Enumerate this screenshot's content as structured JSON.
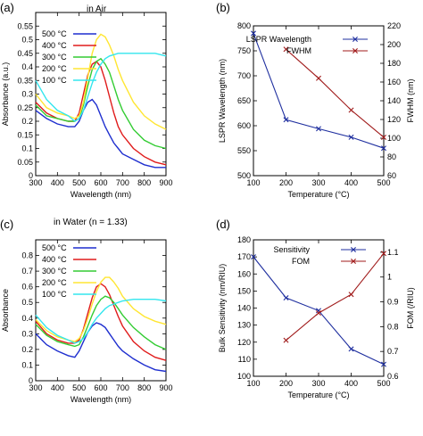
{
  "chart_data": [
    {
      "panel_label": "(a)",
      "type": "line",
      "title": "in Air",
      "xlabel": "Wavelength (nm)",
      "ylabel": "Absorbance (a.u.)",
      "xlim": [
        300,
        900
      ],
      "x_ticks": [
        300,
        400,
        500,
        600,
        700,
        800,
        900
      ],
      "ylim": [
        0,
        0.6
      ],
      "y_ticks": [
        "0",
        "0.05",
        "0.1",
        "0.15",
        "0.2",
        "0.25",
        "0.3",
        "0.35",
        "0.4",
        "0.45",
        "0.5",
        "0.55"
      ],
      "legend_position": "top-left",
      "x": [
        300,
        350,
        400,
        450,
        480,
        500,
        520,
        540,
        560,
        580,
        600,
        620,
        640,
        660,
        680,
        700,
        750,
        800,
        850,
        900
      ],
      "series": [
        {
          "name": "500 °C",
          "color": "#1f2fcf",
          "values": [
            0.24,
            0.21,
            0.19,
            0.18,
            0.18,
            0.2,
            0.24,
            0.27,
            0.28,
            0.26,
            0.22,
            0.18,
            0.15,
            0.12,
            0.1,
            0.08,
            0.06,
            0.04,
            0.03,
            0.03
          ]
        },
        {
          "name": "400 °C",
          "color": "#e01b1b",
          "values": [
            0.27,
            0.23,
            0.21,
            0.2,
            0.2,
            0.23,
            0.3,
            0.37,
            0.41,
            0.42,
            0.4,
            0.35,
            0.29,
            0.23,
            0.18,
            0.15,
            0.1,
            0.07,
            0.05,
            0.04
          ]
        },
        {
          "name": "300 °C",
          "color": "#33cc33",
          "values": [
            0.26,
            0.22,
            0.21,
            0.2,
            0.2,
            0.21,
            0.26,
            0.33,
            0.39,
            0.42,
            0.43,
            0.41,
            0.38,
            0.33,
            0.28,
            0.24,
            0.17,
            0.13,
            0.11,
            0.1
          ]
        },
        {
          "name": "200 °C",
          "color": "#ffe633",
          "values": [
            0.3,
            0.25,
            0.23,
            0.22,
            0.21,
            0.22,
            0.27,
            0.36,
            0.45,
            0.5,
            0.52,
            0.51,
            0.48,
            0.44,
            0.39,
            0.35,
            0.27,
            0.22,
            0.19,
            0.17
          ]
        },
        {
          "name": "100 °C",
          "color": "#33e6ee",
          "values": [
            0.35,
            0.28,
            0.24,
            0.22,
            0.2,
            0.21,
            0.24,
            0.29,
            0.34,
            0.38,
            0.41,
            0.43,
            0.44,
            0.445,
            0.45,
            0.45,
            0.45,
            0.45,
            0.45,
            0.44
          ]
        }
      ]
    },
    {
      "panel_label": "(b)",
      "type": "line",
      "xlabel": "Temperature (°C)",
      "ylabel": "LSPR Wavelength (nm)",
      "ylabel_right": "FWHM (nm)",
      "xlim": [
        100,
        500
      ],
      "x_ticks": [
        100,
        200,
        300,
        400,
        500
      ],
      "ylim": [
        500,
        800
      ],
      "y_ticks": [
        500,
        550,
        600,
        650,
        700,
        750,
        800
      ],
      "ylim_right": [
        60,
        220
      ],
      "y_ticks_right": [
        60,
        80,
        100,
        120,
        140,
        160,
        180,
        200,
        220
      ],
      "legend_position": "top-center",
      "series": [
        {
          "name": "LSPR Wavelength",
          "color": "#1f2f9f",
          "axis": "left",
          "x": [
            100,
            200,
            300,
            400,
            500
          ],
          "values": [
            785,
            612,
            594,
            577,
            555
          ]
        },
        {
          "name": "FWHM",
          "color": "#a01b1b",
          "axis": "right",
          "x": [
            200,
            300,
            400,
            500
          ],
          "values": [
            195,
            164,
            130,
            101
          ]
        }
      ]
    },
    {
      "panel_label": "(c)",
      "type": "line",
      "title": "in Water (n = 1.33)",
      "xlabel": "Wavelength (nm)",
      "ylabel": "Absorbance",
      "xlim": [
        300,
        900
      ],
      "x_ticks": [
        300,
        400,
        500,
        600,
        700,
        800,
        900
      ],
      "ylim": [
        0,
        0.9
      ],
      "y_ticks": [
        "0",
        "0.1",
        "0.2",
        "0.3",
        "0.4",
        "0.5",
        "0.6",
        "0.7",
        "0.8"
      ],
      "legend_position": "top-left",
      "x": [
        300,
        350,
        400,
        450,
        480,
        500,
        520,
        540,
        560,
        580,
        600,
        620,
        640,
        660,
        680,
        700,
        750,
        800,
        850,
        900
      ],
      "series": [
        {
          "name": "500 °C",
          "color": "#1f2fcf",
          "values": [
            0.3,
            0.23,
            0.19,
            0.16,
            0.15,
            0.19,
            0.25,
            0.31,
            0.35,
            0.37,
            0.36,
            0.34,
            0.3,
            0.26,
            0.22,
            0.19,
            0.14,
            0.1,
            0.07,
            0.06
          ]
        },
        {
          "name": "400 °C",
          "color": "#e01b1b",
          "values": [
            0.38,
            0.3,
            0.26,
            0.24,
            0.24,
            0.26,
            0.33,
            0.43,
            0.53,
            0.6,
            0.62,
            0.6,
            0.55,
            0.48,
            0.41,
            0.35,
            0.25,
            0.19,
            0.15,
            0.13
          ]
        },
        {
          "name": "300 °C",
          "color": "#33cc33",
          "values": [
            0.36,
            0.29,
            0.25,
            0.23,
            0.22,
            0.23,
            0.28,
            0.35,
            0.42,
            0.48,
            0.52,
            0.54,
            0.53,
            0.5,
            0.46,
            0.42,
            0.34,
            0.28,
            0.23,
            0.2
          ]
        },
        {
          "name": "200 °C",
          "color": "#ffe633",
          "values": [
            0.39,
            0.32,
            0.28,
            0.26,
            0.25,
            0.27,
            0.32,
            0.4,
            0.49,
            0.57,
            0.63,
            0.66,
            0.66,
            0.63,
            0.59,
            0.54,
            0.46,
            0.41,
            0.38,
            0.36
          ]
        },
        {
          "name": "100 °C",
          "color": "#33e6ee",
          "values": [
            0.42,
            0.34,
            0.29,
            0.26,
            0.24,
            0.25,
            0.27,
            0.31,
            0.36,
            0.4,
            0.43,
            0.46,
            0.48,
            0.49,
            0.5,
            0.51,
            0.52,
            0.52,
            0.52,
            0.51
          ]
        }
      ]
    },
    {
      "panel_label": "(d)",
      "type": "line",
      "xlabel": "Temperature (°C)",
      "ylabel": "Bulk Sensitivity (nm/RIU)",
      "ylabel_right": "FOM (/RIU)",
      "xlim": [
        100,
        500
      ],
      "x_ticks": [
        100,
        200,
        300,
        400,
        500
      ],
      "ylim": [
        100,
        180
      ],
      "y_ticks": [
        100,
        110,
        120,
        130,
        140,
        150,
        160,
        170,
        180
      ],
      "ylim_right": [
        0.6,
        1.15
      ],
      "y_ticks_right": [
        "0.6",
        "0.7",
        "0.8",
        "0.9",
        "1",
        "1.1"
      ],
      "legend_position": "top-center",
      "series": [
        {
          "name": "Sensitivity",
          "color": "#1f2f9f",
          "axis": "left",
          "x": [
            100,
            200,
            300,
            400,
            500
          ],
          "values": [
            170,
            146,
            138.5,
            116,
            107
          ]
        },
        {
          "name": "FOM",
          "color": "#a01b1b",
          "axis": "right",
          "x": [
            200,
            300,
            400,
            500
          ],
          "values": [
            0.745,
            0.855,
            0.93,
            1.095
          ]
        }
      ]
    }
  ]
}
